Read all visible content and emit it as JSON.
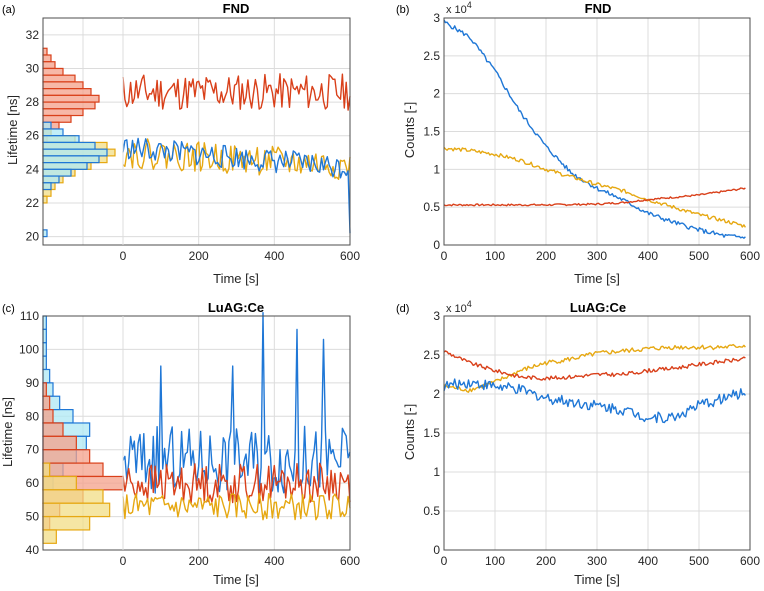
{
  "colors": {
    "blue": "#1f77d6",
    "red": "#d9401a",
    "yellow": "#e6a812",
    "grid": "#dcdcdc",
    "axis": "#4d4d4d",
    "hist_red": "#f4a08a",
    "hist_yellow": "#f2de86",
    "hist_blue": "#aee8f4",
    "hist_green": "#b8e08a"
  },
  "chart_data": [
    {
      "id": "a",
      "panel_label": "(a)",
      "type": "line",
      "title": "FND",
      "xlabel": "Time [s]",
      "ylabel": "Lifetime [ns]",
      "xlim": [
        0,
        600
      ],
      "ylim": [
        19.5,
        33
      ],
      "xticks": [
        0,
        200,
        400,
        600
      ],
      "yticks": [
        20,
        22,
        24,
        26,
        28,
        30,
        32
      ],
      "series": [
        {
          "name": "red",
          "color": "red",
          "mean": 28.6,
          "amp": 1.1,
          "seed": 11
        },
        {
          "name": "yellow",
          "color": "yellow",
          "mean": 25.0,
          "amp": 0.9,
          "seed": 22,
          "trend": -0.8
        },
        {
          "name": "blue",
          "color": "blue",
          "mean": 25.3,
          "amp": 0.7,
          "seed": 33,
          "trend": -1.2,
          "end": 20.2
        }
      ],
      "histograms": [
        {
          "name": "red",
          "color": "hist_red",
          "edge": "red",
          "bins": [
            [
              31,
              1
            ],
            [
              30.6,
              2
            ],
            [
              30.2,
              3
            ],
            [
              29.8,
              5
            ],
            [
              29.4,
              8
            ],
            [
              29,
              10
            ],
            [
              28.6,
              12
            ],
            [
              28.2,
              14
            ],
            [
              27.8,
              13
            ],
            [
              27.4,
              10
            ],
            [
              27,
              7
            ],
            [
              26.6,
              4
            ],
            [
              26.2,
              2
            ],
            [
              25.8,
              1
            ]
          ]
        },
        {
          "name": "yellow",
          "color": "hist_yellow",
          "edge": "yellow",
          "bins": [
            [
              26.2,
              2
            ],
            [
              25.8,
              8
            ],
            [
              25.4,
              16
            ],
            [
              25,
              18
            ],
            [
              24.6,
              16
            ],
            [
              24.2,
              12
            ],
            [
              23.8,
              8
            ],
            [
              23.4,
              5
            ],
            [
              23,
              3
            ],
            [
              22.6,
              2
            ],
            [
              22.2,
              1
            ]
          ]
        },
        {
          "name": "blue",
          "color": "hist_blue",
          "edge": "blue",
          "bins": [
            [
              26.6,
              2
            ],
            [
              26.2,
              5
            ],
            [
              25.8,
              9
            ],
            [
              25.4,
              13
            ],
            [
              25,
              16
            ],
            [
              24.6,
              14
            ],
            [
              24.2,
              11
            ],
            [
              23.8,
              7
            ],
            [
              23.4,
              4
            ],
            [
              23,
              2
            ],
            [
              20.2,
              1
            ]
          ]
        }
      ],
      "hist_xmax": 20
    },
    {
      "id": "b",
      "panel_label": "(b)",
      "type": "line",
      "title": "FND",
      "xlabel": "Time [s]",
      "ylabel": "Counts [-]",
      "exponent": "x 10",
      "exponent_power": "4",
      "xlim": [
        0,
        600
      ],
      "ylim": [
        0,
        3
      ],
      "xticks": [
        0,
        100,
        200,
        300,
        400,
        500,
        600
      ],
      "yticks": [
        0,
        0.5,
        1,
        1.5,
        2,
        2.5,
        3
      ],
      "ytick_labels": [
        "0",
        "0.5",
        "1",
        "1.5",
        "2",
        "2.5",
        "3"
      ],
      "series": [
        {
          "name": "blue",
          "color": "blue",
          "points": [
            [
              0,
              2.95
            ],
            [
              50,
              2.75
            ],
            [
              100,
              2.3
            ],
            [
              150,
              1.75
            ],
            [
              200,
              1.3
            ],
            [
              250,
              0.95
            ],
            [
              300,
              0.75
            ],
            [
              350,
              0.6
            ],
            [
              400,
              0.42
            ],
            [
              450,
              0.3
            ],
            [
              500,
              0.2
            ],
            [
              550,
              0.12
            ],
            [
              590,
              0.1
            ]
          ],
          "noise": 0.03,
          "seed": 5
        },
        {
          "name": "yellow",
          "color": "yellow",
          "points": [
            [
              0,
              1.28
            ],
            [
              50,
              1.25
            ],
            [
              100,
              1.2
            ],
            [
              150,
              1.12
            ],
            [
              200,
              1.0
            ],
            [
              250,
              0.9
            ],
            [
              300,
              0.8
            ],
            [
              350,
              0.72
            ],
            [
              400,
              0.6
            ],
            [
              450,
              0.5
            ],
            [
              500,
              0.4
            ],
            [
              550,
              0.32
            ],
            [
              590,
              0.25
            ]
          ],
          "noise": 0.025,
          "seed": 6
        },
        {
          "name": "red",
          "color": "red",
          "points": [
            [
              0,
              0.53
            ],
            [
              100,
              0.53
            ],
            [
              200,
              0.53
            ],
            [
              300,
              0.54
            ],
            [
              350,
              0.56
            ],
            [
              400,
              0.6
            ],
            [
              450,
              0.63
            ],
            [
              500,
              0.66
            ],
            [
              550,
              0.71
            ],
            [
              590,
              0.75
            ]
          ],
          "noise": 0.012,
          "seed": 7
        }
      ]
    },
    {
      "id": "c",
      "panel_label": "(c)",
      "type": "line",
      "title": "LuAG:Ce",
      "xlabel": "Time [s]",
      "ylabel": "Lifetime [ns]",
      "xlim": [
        0,
        600
      ],
      "ylim": [
        40,
        110
      ],
      "xticks": [
        0,
        200,
        400,
        600
      ],
      "yticks": [
        40,
        50,
        60,
        70,
        80,
        90,
        100,
        110
      ],
      "series": [
        {
          "name": "blue",
          "color": "blue",
          "mean": 67,
          "amp": 10,
          "seed": 44,
          "spikes": [
            [
              370,
              111
            ],
            [
              460,
              106
            ],
            [
              290,
              95
            ],
            [
              530,
              103
            ],
            [
              100,
              95
            ]
          ]
        },
        {
          "name": "red",
          "color": "red",
          "mean": 60,
          "amp": 6,
          "seed": 55
        },
        {
          "name": "yellow",
          "color": "yellow",
          "mean": 53,
          "amp": 4,
          "seed": 66
        }
      ],
      "histograms": [
        {
          "name": "blue",
          "color": "hist_blue",
          "edge": "blue",
          "bins": [
            [
              108,
              1
            ],
            [
              104,
              1
            ],
            [
              100,
              1
            ],
            [
              96,
              1
            ],
            [
              92,
              2
            ],
            [
              88,
              3
            ],
            [
              84,
              5
            ],
            [
              80,
              9
            ],
            [
              76,
              14
            ],
            [
              72,
              13
            ],
            [
              68,
              10
            ],
            [
              64,
              6
            ],
            [
              60,
              3
            ]
          ]
        },
        {
          "name": "red",
          "color": "hist_red",
          "edge": "red",
          "bins": [
            [
              88,
              1
            ],
            [
              84,
              2
            ],
            [
              80,
              3
            ],
            [
              76,
              6
            ],
            [
              72,
              10
            ],
            [
              68,
              14
            ],
            [
              64,
              18
            ],
            [
              60,
              24
            ],
            [
              56,
              12
            ],
            [
              52,
              5
            ],
            [
              48,
              2
            ]
          ]
        },
        {
          "name": "yellow",
          "color": "hist_yellow",
          "edge": "yellow",
          "bins": [
            [
              64,
              2
            ],
            [
              60,
              10
            ],
            [
              56,
              18
            ],
            [
              52,
              20
            ],
            [
              48,
              14
            ],
            [
              44,
              4
            ]
          ]
        }
      ],
      "hist_xmax": 24
    },
    {
      "id": "d",
      "panel_label": "(d)",
      "type": "line",
      "title": "LuAG:Ce",
      "xlabel": "Time [s]",
      "ylabel": "Counts [-]",
      "exponent": "x 10",
      "exponent_power": "4",
      "xlim": [
        0,
        600
      ],
      "ylim": [
        0,
        3
      ],
      "xticks": [
        0,
        100,
        200,
        300,
        400,
        500,
        600
      ],
      "yticks": [
        0,
        0.5,
        1,
        1.5,
        2,
        2.5,
        3
      ],
      "ytick_labels": [
        "0",
        "0.5",
        "1",
        "1.5",
        "2",
        "2.5",
        "3"
      ],
      "series": [
        {
          "name": "yellow",
          "color": "yellow",
          "points": [
            [
              0,
              2.1
            ],
            [
              50,
              2.05
            ],
            [
              100,
              2.15
            ],
            [
              150,
              2.3
            ],
            [
              200,
              2.4
            ],
            [
              250,
              2.45
            ],
            [
              300,
              2.52
            ],
            [
              350,
              2.55
            ],
            [
              400,
              2.58
            ],
            [
              450,
              2.6
            ],
            [
              500,
              2.6
            ],
            [
              550,
              2.6
            ],
            [
              590,
              2.62
            ]
          ],
          "noise": 0.03,
          "seed": 8
        },
        {
          "name": "red",
          "color": "red",
          "points": [
            [
              0,
              2.55
            ],
            [
              50,
              2.4
            ],
            [
              100,
              2.3
            ],
            [
              150,
              2.22
            ],
            [
              200,
              2.2
            ],
            [
              250,
              2.22
            ],
            [
              300,
              2.25
            ],
            [
              350,
              2.25
            ],
            [
              400,
              2.3
            ],
            [
              450,
              2.33
            ],
            [
              500,
              2.38
            ],
            [
              550,
              2.42
            ],
            [
              590,
              2.45
            ]
          ],
          "noise": 0.025,
          "seed": 9
        },
        {
          "name": "blue",
          "color": "blue",
          "points": [
            [
              0,
              2.1
            ],
            [
              50,
              2.15
            ],
            [
              100,
              2.1
            ],
            [
              150,
              2.05
            ],
            [
              200,
              1.95
            ],
            [
              250,
              1.9
            ],
            [
              300,
              1.85
            ],
            [
              350,
              1.8
            ],
            [
              400,
              1.7
            ],
            [
              450,
              1.7
            ],
            [
              500,
              1.85
            ],
            [
              550,
              1.95
            ],
            [
              590,
              2.02
            ]
          ],
          "noise": 0.07,
          "seed": 10
        }
      ]
    }
  ]
}
